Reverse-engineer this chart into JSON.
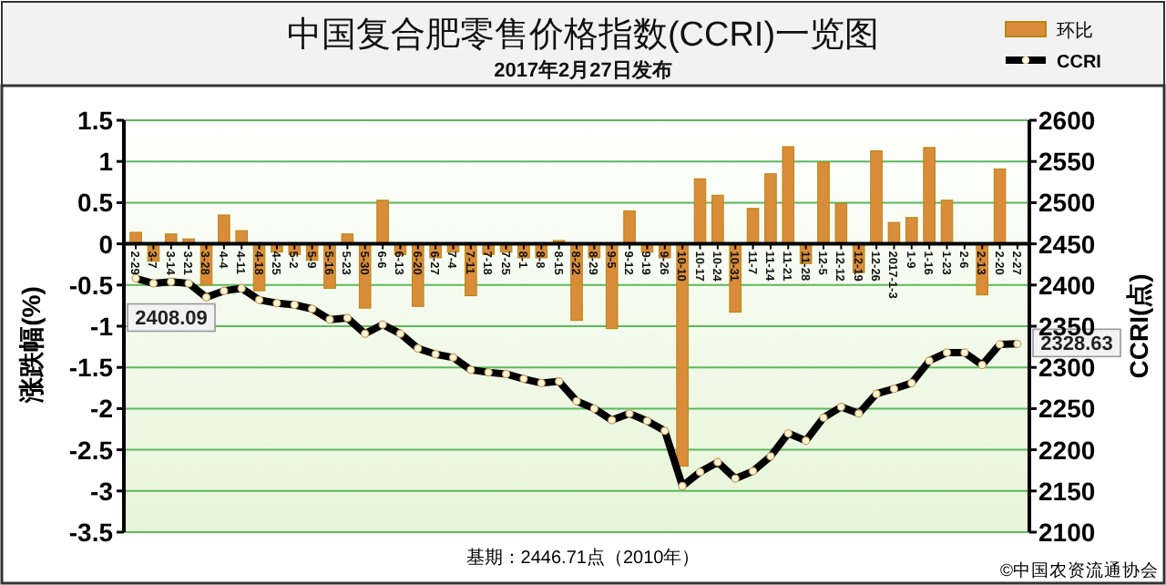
{
  "chart_data": {
    "type": "bar",
    "title": "中国复合肥零售价格指数(CCRI)一览图",
    "subtitle": "2017年2月27日发布",
    "ylabel": "涨跌幅(%)",
    "y2label": "CCRI(点)",
    "categories": [
      "2-29",
      "3-7",
      "3-14",
      "3-21",
      "3-28",
      "4-4",
      "4-11",
      "4-18",
      "4-25",
      "5-2",
      "5-9",
      "5-16",
      "5-23",
      "5-30",
      "6-6",
      "6-13",
      "6-20",
      "6-27",
      "7-4",
      "7-11",
      "7-18",
      "7-25",
      "8-1",
      "8-8",
      "8-15",
      "8-22",
      "8-29",
      "9-5",
      "9-12",
      "9-19",
      "9-26",
      "10-10",
      "10-17",
      "10-24",
      "10-31",
      "11-7",
      "11-14",
      "11-21",
      "11-28",
      "12-5",
      "12-12",
      "12-19",
      "12-26",
      "2017-1-3",
      "1-9",
      "1-16",
      "1-23",
      "2-6",
      "2-13",
      "2-20",
      "2-27"
    ],
    "series": [
      {
        "name": "环比",
        "color": "#d98c3a",
        "values": [
          0.14,
          -0.21,
          0.12,
          0.06,
          -0.5,
          0.35,
          0.16,
          -0.57,
          -0.1,
          -0.13,
          -0.2,
          -0.54,
          0.12,
          -0.78,
          0.53,
          -0.13,
          -0.76,
          -0.17,
          -0.1,
          -0.63,
          -0.13,
          -0.1,
          -0.17,
          -0.17,
          0.04,
          -0.93,
          -0.17,
          -1.03,
          0.4,
          -0.1,
          -0.17,
          -2.7,
          0.79,
          0.59,
          -0.83,
          0.43,
          0.85,
          1.18,
          -0.24,
          0.99,
          0.49,
          -0.35,
          1.13,
          0.26,
          0.32,
          1.17,
          0.53,
          0,
          -0.62,
          0.91,
          0
        ]
      },
      {
        "name": "CCRI",
        "type": "line",
        "axis": "y2",
        "color": "#000000",
        "marker": "circle",
        "values": [
          2408.09,
          2402,
          2404,
          2402,
          2385,
          2393,
          2396,
          2382,
          2378,
          2376,
          2371,
          2358,
          2360,
          2341,
          2352,
          2341,
          2323,
          2316,
          2312,
          2297,
          2294,
          2292,
          2286,
          2281,
          2283,
          2259,
          2250,
          2236,
          2244,
          2235,
          2223,
          2156,
          2173,
          2185,
          2165,
          2174,
          2192,
          2220,
          2211,
          2239,
          2252,
          2244,
          2268,
          2274,
          2281,
          2308,
          2318,
          2318,
          2303,
          2328,
          2328.63
        ],
        "value_labels": [
          "2408.09",
          null,
          null,
          null,
          null,
          null,
          null,
          null,
          null,
          null,
          null,
          null,
          null,
          null,
          null,
          null,
          null,
          null,
          null,
          null,
          null,
          null,
          null,
          null,
          null,
          null,
          null,
          null,
          null,
          null,
          null,
          null,
          null,
          null,
          null,
          null,
          null,
          null,
          null,
          null,
          null,
          null,
          null,
          null,
          null,
          null,
          null,
          null,
          null,
          null,
          "2328.63"
        ]
      }
    ],
    "ylim": [
      -3.5,
      1.5
    ],
    "yticks": [
      -3.5,
      -3,
      -2.5,
      -2,
      -1.5,
      -1,
      -0.5,
      0,
      0.5,
      1,
      1.5
    ],
    "y2lim": [
      2100,
      2600
    ],
    "y2ticks": [
      2100,
      2150,
      2200,
      2250,
      2300,
      2350,
      2400,
      2450,
      2500,
      2550,
      2600
    ],
    "grid": "y",
    "legend": "top right",
    "annotations": [
      "基期：2446.71点（2010年）",
      "©中国农资流通协会"
    ]
  }
}
